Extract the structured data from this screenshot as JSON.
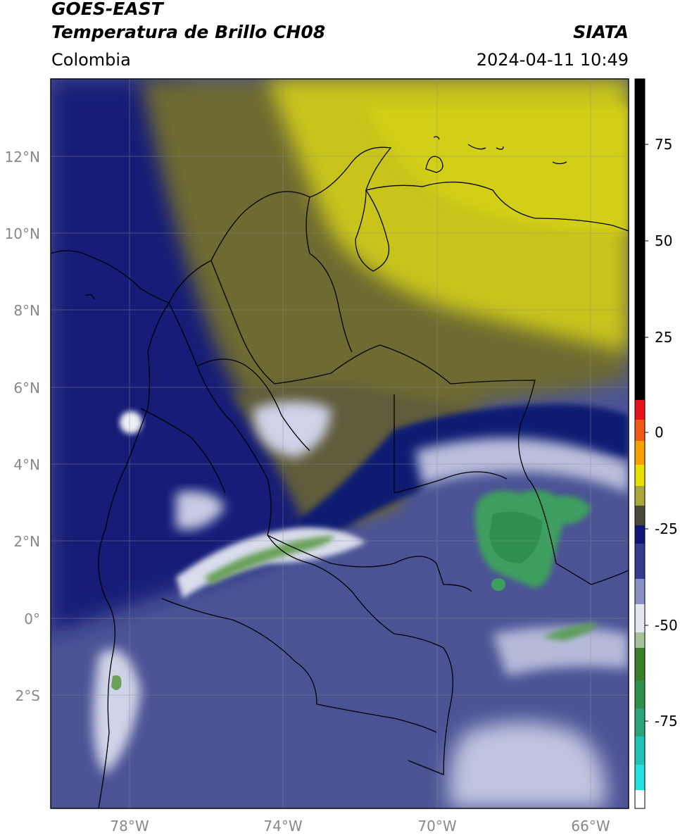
{
  "header": {
    "satellite": "GOES-EAST",
    "product": "Temperatura de Brillo CH08",
    "source": "SIATA",
    "region": "Colombia",
    "datetime": "2024-04-11 10:49"
  },
  "map": {
    "lat_ticks": [
      "12°N",
      "10°N",
      "8°N",
      "6°N",
      "4°N",
      "2°N",
      "0°",
      "2°S"
    ],
    "lon_ticks": [
      "78°W",
      "74°W",
      "70°W",
      "66°W"
    ],
    "grid": true
  },
  "colorbar": {
    "labels": [
      "75",
      "50",
      "25",
      "0",
      "-25",
      "-50",
      "-75"
    ],
    "range": [
      -95,
      90
    ]
  },
  "colors": {
    "yellow": "#c8c41e",
    "olive": "#6d6a30",
    "navy": "#101d7a",
    "blue_gray": "#4b5395",
    "green": "#3e9e5e"
  }
}
